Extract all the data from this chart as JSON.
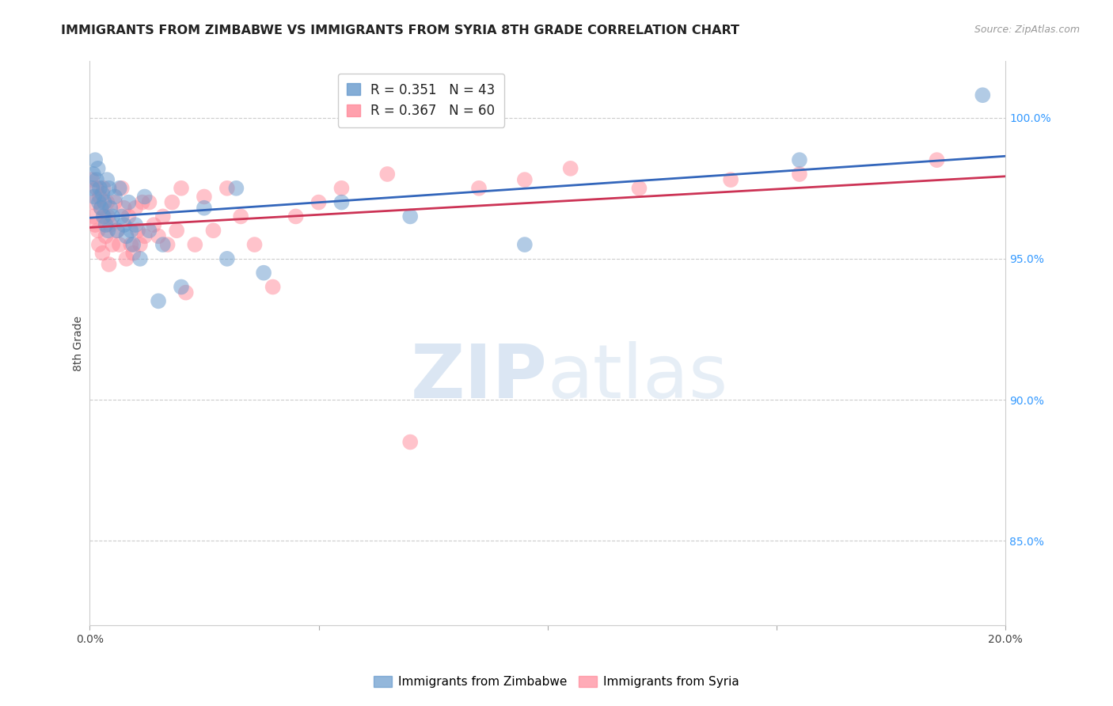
{
  "title": "IMMIGRANTS FROM ZIMBABWE VS IMMIGRANTS FROM SYRIA 8TH GRADE CORRELATION CHART",
  "source": "Source: ZipAtlas.com",
  "ylabel": "8th Grade",
  "right_yticks": [
    "85.0%",
    "90.0%",
    "95.0%",
    "100.0%"
  ],
  "right_ytick_vals": [
    85.0,
    90.0,
    95.0,
    100.0
  ],
  "legend1_label": "R = 0.351   N = 43",
  "legend2_label": "R = 0.367   N = 60",
  "legend1_color": "#6699cc",
  "legend2_color": "#ff8899",
  "blue_color": "#6699cc",
  "pink_color": "#ff8899",
  "blue_line_color": "#3366bb",
  "pink_line_color": "#cc3355",
  "background_color": "#ffffff",
  "grid_color": "#cccccc",
  "xlim": [
    0.0,
    20.0
  ],
  "ylim": [
    82.0,
    102.0
  ],
  "zimbabwe_x": [
    0.05,
    0.08,
    0.1,
    0.12,
    0.15,
    0.18,
    0.2,
    0.22,
    0.25,
    0.28,
    0.3,
    0.32,
    0.35,
    0.38,
    0.4,
    0.42,
    0.45,
    0.5,
    0.55,
    0.6,
    0.65,
    0.7,
    0.75,
    0.8,
    0.85,
    0.9,
    0.95,
    1.0,
    1.1,
    1.2,
    1.3,
    1.5,
    1.6,
    2.0,
    2.5,
    3.0,
    3.2,
    3.8,
    5.5,
    7.0,
    9.5,
    15.5,
    19.5
  ],
  "zimbabwe_y": [
    97.5,
    98.0,
    97.2,
    98.5,
    97.8,
    98.2,
    97.0,
    97.5,
    96.8,
    97.3,
    96.5,
    97.0,
    96.2,
    97.8,
    96.0,
    97.5,
    96.8,
    96.5,
    97.2,
    96.0,
    97.5,
    96.5,
    96.2,
    95.8,
    97.0,
    96.0,
    95.5,
    96.2,
    95.0,
    97.2,
    96.0,
    93.5,
    95.5,
    94.0,
    96.8,
    95.0,
    97.5,
    94.5,
    97.0,
    96.5,
    95.5,
    98.5,
    100.8
  ],
  "syria_x": [
    0.05,
    0.08,
    0.1,
    0.12,
    0.15,
    0.18,
    0.2,
    0.22,
    0.25,
    0.28,
    0.3,
    0.32,
    0.35,
    0.38,
    0.4,
    0.42,
    0.45,
    0.5,
    0.55,
    0.6,
    0.65,
    0.7,
    0.75,
    0.8,
    0.85,
    0.9,
    0.95,
    1.0,
    1.05,
    1.1,
    1.15,
    1.2,
    1.3,
    1.4,
    1.5,
    1.6,
    1.7,
    1.8,
    1.9,
    2.0,
    2.1,
    2.3,
    2.5,
    2.7,
    3.0,
    3.3,
    3.6,
    4.0,
    4.5,
    5.0,
    5.5,
    6.5,
    7.0,
    8.5,
    9.5,
    10.5,
    12.0,
    14.0,
    15.5,
    18.5
  ],
  "syria_y": [
    97.8,
    96.5,
    97.0,
    96.2,
    97.5,
    96.0,
    95.5,
    97.2,
    96.8,
    95.2,
    97.5,
    96.5,
    95.8,
    97.0,
    96.5,
    94.8,
    96.2,
    95.5,
    97.0,
    96.0,
    95.5,
    97.5,
    96.8,
    95.0,
    96.5,
    95.5,
    95.2,
    96.8,
    96.0,
    95.5,
    97.0,
    95.8,
    97.0,
    96.2,
    95.8,
    96.5,
    95.5,
    97.0,
    96.0,
    97.5,
    93.8,
    95.5,
    97.2,
    96.0,
    97.5,
    96.5,
    95.5,
    94.0,
    96.5,
    97.0,
    97.5,
    98.0,
    88.5,
    97.5,
    97.8,
    98.2,
    97.5,
    97.8,
    98.0,
    98.5
  ]
}
